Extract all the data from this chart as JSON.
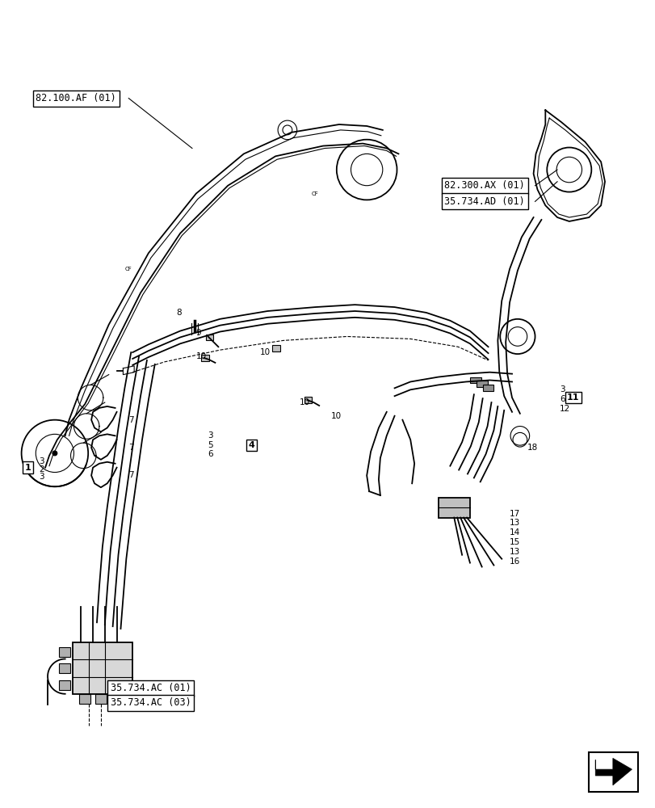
{
  "bg_color": "#ffffff",
  "line_color": "#000000",
  "figsize": [
    8.12,
    10.0
  ],
  "dpi": 100,
  "labels": {
    "ref1": "82.100.AF (01)",
    "ref2": "82.300.AX (01)",
    "ref3": "35.734.AD (01)",
    "ref4": "35.734.AC (01)",
    "ref5": "35.734.AC (03)"
  }
}
